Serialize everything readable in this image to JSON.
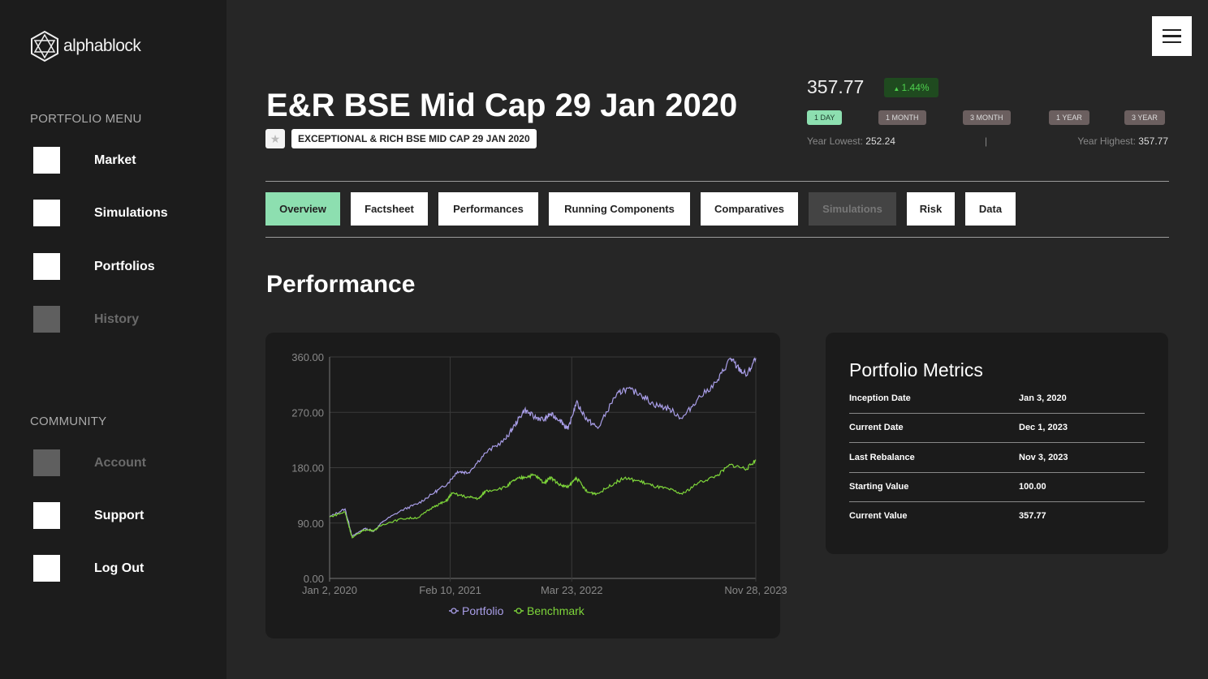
{
  "brand": {
    "name": "alphablock"
  },
  "sidebar": {
    "portfolio_menu_title": "PORTFOLIO MENU",
    "portfolio_items": [
      {
        "label": "Market"
      },
      {
        "label": "Simulations"
      },
      {
        "label": "Portfolios"
      },
      {
        "label": "History"
      }
    ],
    "community_title": "COMMUNITY",
    "community_items": [
      {
        "label": "Account"
      },
      {
        "label": "Support"
      },
      {
        "label": "Log Out"
      }
    ]
  },
  "header": {
    "title": "E&R BSE Mid Cap 29 Jan 2020",
    "subtitle_badge": "EXCEPTIONAL & RICH BSE MID CAP 29 JAN 2020",
    "price": "357.77",
    "change": "1.44%",
    "periods": [
      "1 DAY",
      "1 MONTH",
      "3 MONTH",
      "1 YEAR",
      "3 YEAR"
    ],
    "year_lowest_label": "Year Lowest:",
    "year_lowest": "252.24",
    "separator": "|",
    "year_highest_label": "Year Highest:",
    "year_highest": "357.77"
  },
  "tabs": [
    "Overview",
    "Factsheet",
    "Performances",
    "Running Components",
    "Comparatives",
    "Simulations",
    "Risk",
    "Data"
  ],
  "section_title": "Performance",
  "colors": {
    "portfolio": "#a99ee8",
    "benchmark": "#7ed63a",
    "accent": "#8ddfb0"
  },
  "metrics": {
    "title": "Portfolio Metrics",
    "rows": [
      {
        "label": "Inception Date",
        "value": "Jan 3, 2020"
      },
      {
        "label": "Current Date",
        "value": "Dec 1, 2023"
      },
      {
        "label": "Last Rebalance",
        "value": "Nov 3, 2023"
      },
      {
        "label": "Starting Value",
        "value": "100.00"
      },
      {
        "label": "Current Value",
        "value": "357.77"
      }
    ]
  },
  "chart_data": {
    "type": "line",
    "x_unit": "months since Jan 2, 2020",
    "xlim": [
      0,
      47
    ],
    "ylim": [
      0,
      360
    ],
    "yticks": [
      "0.00",
      "90.00",
      "180.00",
      "270.00",
      "360.00"
    ],
    "ytick_values": [
      0,
      90,
      180,
      270,
      360
    ],
    "xticks": [
      "Jan 2, 2020",
      "Feb 10, 2021",
      "Mar 23, 2022",
      "Nov 28, 2023"
    ],
    "xtick_values": [
      0,
      13.3,
      26.7,
      47
    ],
    "grid": true,
    "legend": "bottom-center",
    "series": [
      {
        "name": "Portfolio",
        "x": [
          0,
          1.7,
          2.5,
          3.8,
          4.9,
          5.9,
          8,
          9.8,
          11.6,
          13,
          14.1,
          15.3,
          17.2,
          19.4,
          20.4,
          21.5,
          22.6,
          23.7,
          24.3,
          25.4,
          26.3,
          27.2,
          28.4,
          29.6,
          31.4,
          32.5,
          34.2,
          35.7,
          37.4,
          38.9,
          40.6,
          42.7,
          44.2,
          44.9,
          46,
          47
        ],
        "y": [
          100,
          113,
          68,
          81,
          77,
          93,
          111,
          122,
          140,
          154,
          174,
          172,
          204,
          226,
          249,
          274,
          262,
          258,
          267,
          258,
          242,
          286,
          258,
          244,
          294,
          308,
          301,
          283,
          276,
          260,
          292,
          319,
          358,
          344,
          330,
          357.77
        ]
      },
      {
        "name": "Benchmark",
        "x": [
          0,
          1.7,
          2.5,
          3.8,
          4.9,
          5.9,
          8,
          9.8,
          11.6,
          12.8,
          13.5,
          15.3,
          16.5,
          17.2,
          19.4,
          20.4,
          21.5,
          22.6,
          23.7,
          24.3,
          25.4,
          26.3,
          27.2,
          28.4,
          29.6,
          31.4,
          32.5,
          34.2,
          35.7,
          37.4,
          38.9,
          40.6,
          42.7,
          44.2,
          46,
          47
        ],
        "y": [
          100,
          108,
          66,
          79,
          78,
          88,
          97,
          99,
          118,
          125,
          138,
          132,
          130,
          142,
          148,
          160,
          165,
          168,
          155,
          165,
          152,
          148,
          164,
          140,
          138,
          155,
          163,
          158,
          150,
          145,
          137,
          155,
          167,
          185,
          178,
          193
        ]
      }
    ]
  }
}
